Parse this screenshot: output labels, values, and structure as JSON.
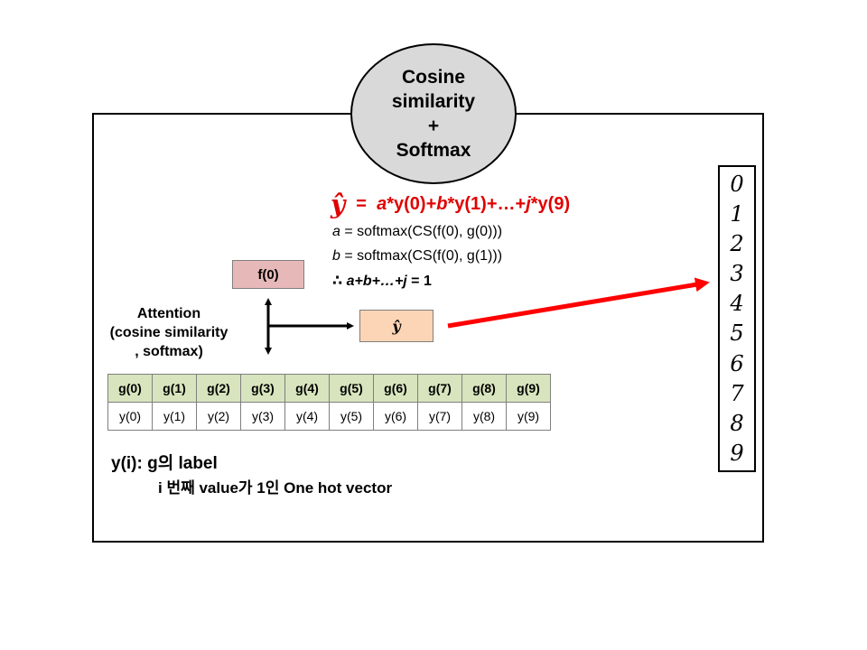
{
  "ellipse": {
    "lines": [
      "Cosine",
      "similarity",
      "+",
      "Softmax"
    ]
  },
  "f_box": {
    "label": "f(0)"
  },
  "yhat_box": {
    "label": "ŷ"
  },
  "attention": {
    "lines": [
      "Attention",
      "(cosine similarity",
      ", softmax)"
    ]
  },
  "formula": {
    "main": {
      "yhat": "ŷ",
      "eq": "=",
      "a": "a",
      "t1": " *y(0)+",
      "b": "b",
      "t2": " *y(1)+…+",
      "j": "j",
      "t3": " *y(9)"
    },
    "line_a": {
      "var": "a",
      "rest": " = softmax(CS(f(0),  g(0)))"
    },
    "line_b": {
      "var": "b",
      "rest": " = softmax(CS(f(0),  g(1)))"
    },
    "line_sum": {
      "therefore": "∴ ",
      "expr": "a+b+…+j",
      "rest": " = 1"
    }
  },
  "table": {
    "g": [
      "g(0)",
      "g(1)",
      "g(2)",
      "g(3)",
      "g(4)",
      "g(5)",
      "g(6)",
      "g(7)",
      "g(8)",
      "g(9)"
    ],
    "y": [
      "y(0)",
      "y(1)",
      "y(2)",
      "y(3)",
      "y(4)",
      "y(5)",
      "y(6)",
      "y(7)",
      "y(8)",
      "y(9)"
    ]
  },
  "label_text": {
    "line1": "y(i): g의 label",
    "line2": "i 번째 value가 1인 One hot vector"
  },
  "digits": [
    "0",
    "1",
    "2",
    "3",
    "4",
    "5",
    "6",
    "7",
    "8",
    "9"
  ],
  "colors": {
    "formula_red": "#e00000",
    "arrow_red": "#ff0000",
    "ellipse_fill": "#d9d9d9",
    "f_fill": "#e6b9b8",
    "yhat_fill": "#fbd5b5",
    "g_row_fill": "#d7e4bd"
  }
}
